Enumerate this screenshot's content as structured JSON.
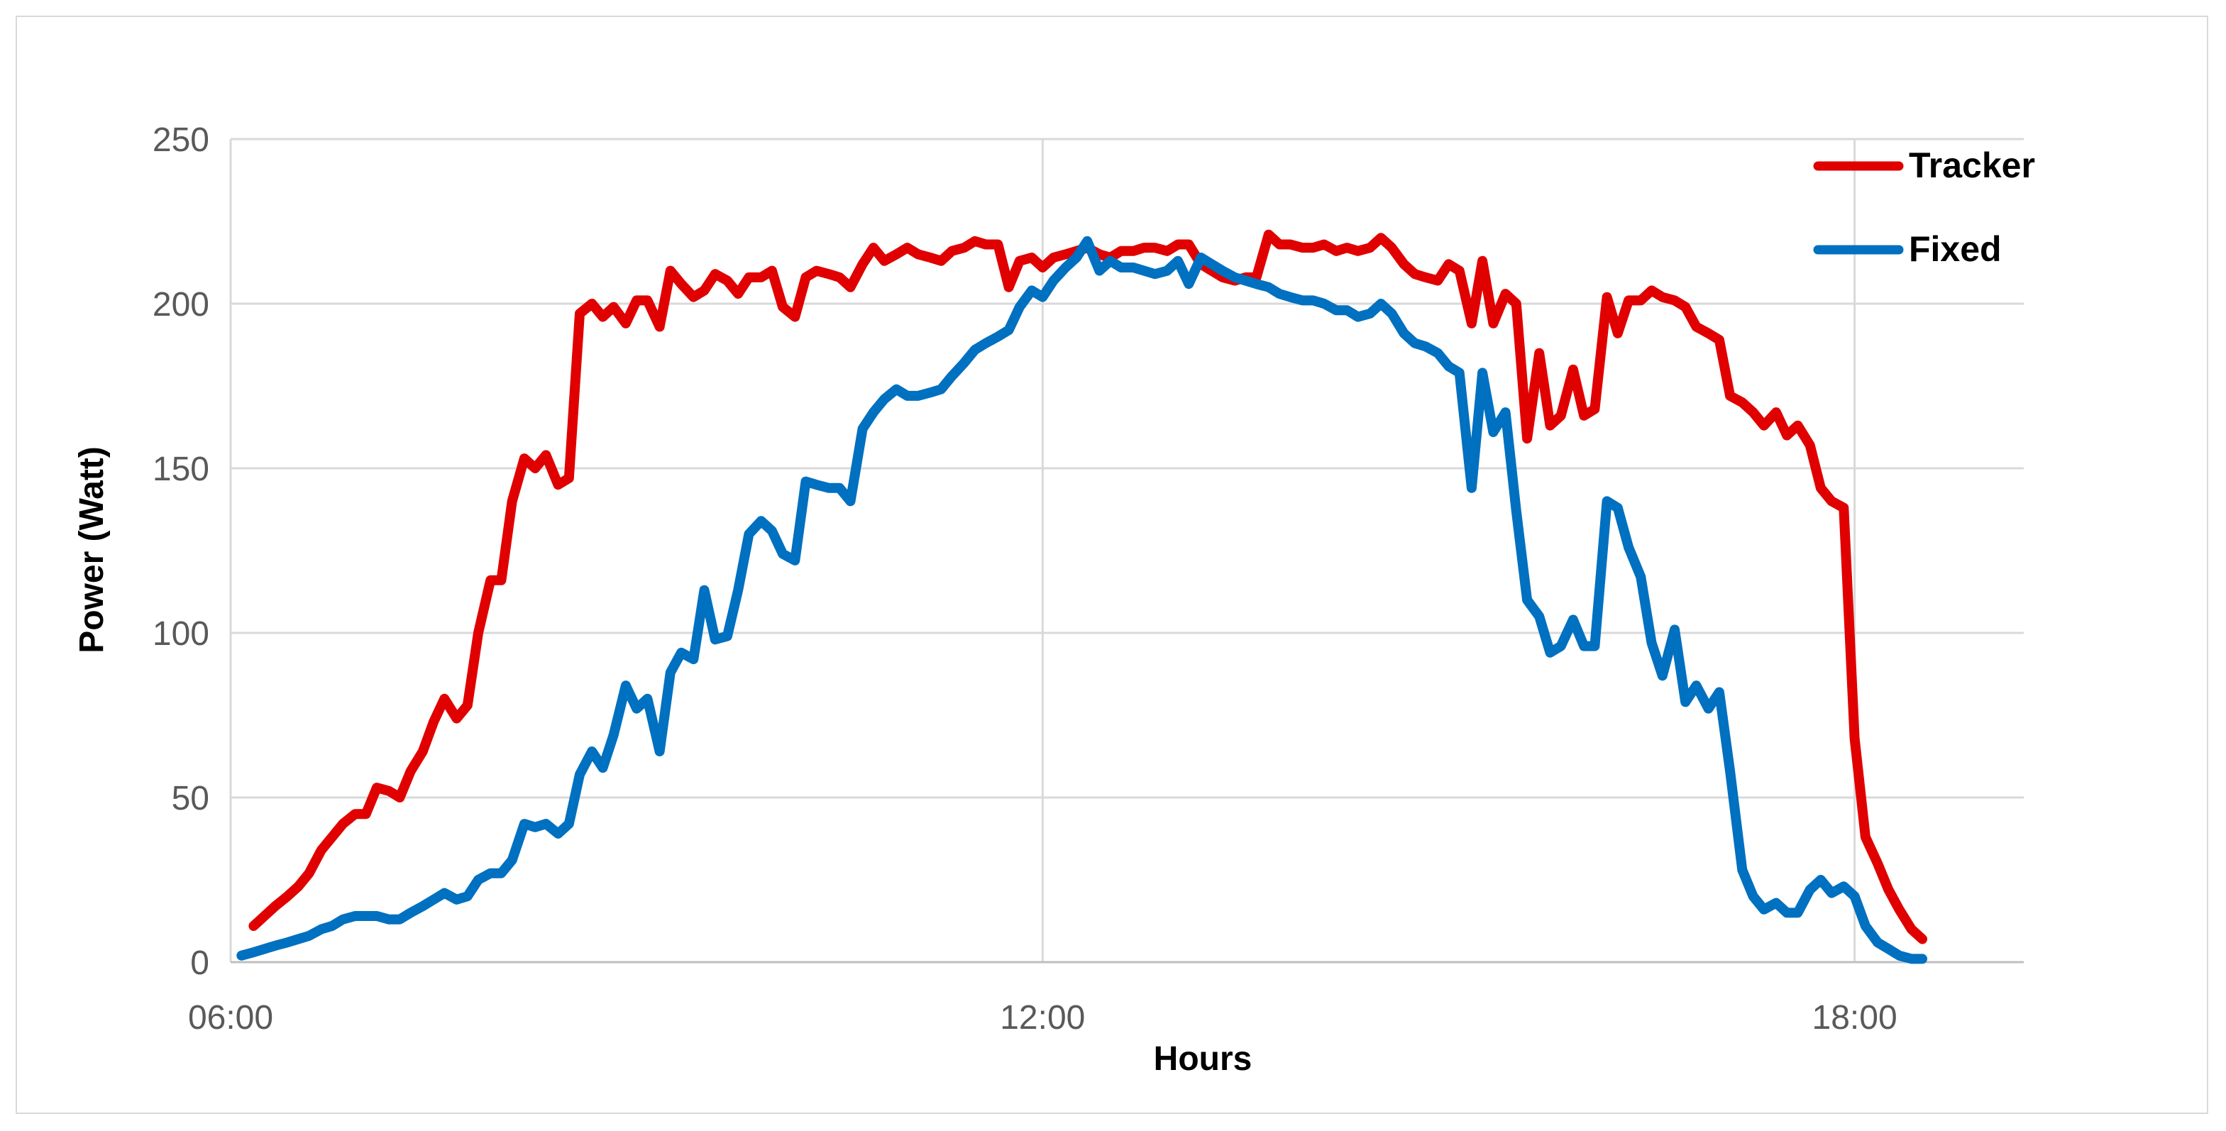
{
  "chart_data": {
    "type": "line",
    "xlabel": "Hours",
    "ylabel": "Power (Watt)",
    "x_unit": "hours",
    "xlim": [
      6,
      19.25
    ],
    "ylim": [
      0,
      250
    ],
    "x_ticks": [
      6,
      12,
      18
    ],
    "x_tick_labels": [
      "06:00",
      "12:00",
      "18:00"
    ],
    "y_ticks": [
      0,
      50,
      100,
      150,
      200,
      250
    ],
    "grid": true,
    "legend_position": "top-right",
    "series": [
      {
        "name": "Tracker",
        "color": "#e00000",
        "points": [
          [
            6.17,
            11
          ],
          [
            6.25,
            14
          ],
          [
            6.33,
            17
          ],
          [
            6.42,
            20
          ],
          [
            6.5,
            23
          ],
          [
            6.58,
            27
          ],
          [
            6.67,
            34
          ],
          [
            6.75,
            38
          ],
          [
            6.83,
            42
          ],
          [
            6.92,
            45
          ],
          [
            7.0,
            45
          ],
          [
            7.08,
            53
          ],
          [
            7.17,
            52
          ],
          [
            7.25,
            50
          ],
          [
            7.33,
            58
          ],
          [
            7.42,
            64
          ],
          [
            7.5,
            73
          ],
          [
            7.58,
            80
          ],
          [
            7.67,
            74
          ],
          [
            7.75,
            78
          ],
          [
            7.83,
            100
          ],
          [
            7.92,
            116
          ],
          [
            8.0,
            116
          ],
          [
            8.08,
            140
          ],
          [
            8.17,
            153
          ],
          [
            8.25,
            150
          ],
          [
            8.33,
            154
          ],
          [
            8.42,
            145
          ],
          [
            8.5,
            147
          ],
          [
            8.58,
            197
          ],
          [
            8.67,
            200
          ],
          [
            8.75,
            196
          ],
          [
            8.83,
            199
          ],
          [
            8.92,
            194
          ],
          [
            9.0,
            201
          ],
          [
            9.08,
            201
          ],
          [
            9.17,
            193
          ],
          [
            9.25,
            210
          ],
          [
            9.33,
            206
          ],
          [
            9.42,
            202
          ],
          [
            9.5,
            204
          ],
          [
            9.58,
            209
          ],
          [
            9.67,
            207
          ],
          [
            9.75,
            203
          ],
          [
            9.83,
            208
          ],
          [
            9.92,
            208
          ],
          [
            10.0,
            210
          ],
          [
            10.08,
            199
          ],
          [
            10.17,
            196
          ],
          [
            10.25,
            208
          ],
          [
            10.33,
            210
          ],
          [
            10.42,
            209
          ],
          [
            10.5,
            208
          ],
          [
            10.58,
            205
          ],
          [
            10.67,
            212
          ],
          [
            10.75,
            217
          ],
          [
            10.83,
            213
          ],
          [
            10.92,
            215
          ],
          [
            11.0,
            217
          ],
          [
            11.08,
            215
          ],
          [
            11.17,
            214
          ],
          [
            11.25,
            213
          ],
          [
            11.33,
            216
          ],
          [
            11.42,
            217
          ],
          [
            11.5,
            219
          ],
          [
            11.58,
            218
          ],
          [
            11.67,
            218
          ],
          [
            11.75,
            205
          ],
          [
            11.83,
            213
          ],
          [
            11.92,
            214
          ],
          [
            12.0,
            211
          ],
          [
            12.08,
            214
          ],
          [
            12.17,
            215
          ],
          [
            12.25,
            216
          ],
          [
            12.33,
            217
          ],
          [
            12.42,
            215
          ],
          [
            12.5,
            214
          ],
          [
            12.58,
            216
          ],
          [
            12.67,
            216
          ],
          [
            12.75,
            217
          ],
          [
            12.83,
            217
          ],
          [
            12.92,
            216
          ],
          [
            13.0,
            218
          ],
          [
            13.08,
            218
          ],
          [
            13.17,
            212
          ],
          [
            13.25,
            210
          ],
          [
            13.33,
            208
          ],
          [
            13.42,
            207
          ],
          [
            13.5,
            208
          ],
          [
            13.58,
            208
          ],
          [
            13.67,
            221
          ],
          [
            13.75,
            218
          ],
          [
            13.83,
            218
          ],
          [
            13.92,
            217
          ],
          [
            14.0,
            217
          ],
          [
            14.08,
            218
          ],
          [
            14.17,
            216
          ],
          [
            14.25,
            217
          ],
          [
            14.33,
            216
          ],
          [
            14.42,
            217
          ],
          [
            14.5,
            220
          ],
          [
            14.58,
            217
          ],
          [
            14.67,
            212
          ],
          [
            14.75,
            209
          ],
          [
            14.83,
            208
          ],
          [
            14.92,
            207
          ],
          [
            15.0,
            212
          ],
          [
            15.08,
            210
          ],
          [
            15.17,
            194
          ],
          [
            15.25,
            213
          ],
          [
            15.33,
            194
          ],
          [
            15.42,
            203
          ],
          [
            15.5,
            200
          ],
          [
            15.58,
            159
          ],
          [
            15.67,
            185
          ],
          [
            15.75,
            163
          ],
          [
            15.83,
            166
          ],
          [
            15.92,
            180
          ],
          [
            16.0,
            166
          ],
          [
            16.08,
            168
          ],
          [
            16.17,
            202
          ],
          [
            16.25,
            191
          ],
          [
            16.33,
            201
          ],
          [
            16.42,
            201
          ],
          [
            16.5,
            204
          ],
          [
            16.58,
            202
          ],
          [
            16.67,
            201
          ],
          [
            16.75,
            199
          ],
          [
            16.83,
            193
          ],
          [
            16.92,
            191
          ],
          [
            17.0,
            189
          ],
          [
            17.08,
            172
          ],
          [
            17.17,
            170
          ],
          [
            17.25,
            167
          ],
          [
            17.33,
            163
          ],
          [
            17.42,
            167
          ],
          [
            17.5,
            160
          ],
          [
            17.58,
            163
          ],
          [
            17.67,
            157
          ],
          [
            17.75,
            144
          ],
          [
            17.83,
            140
          ],
          [
            17.92,
            138
          ],
          [
            18.0,
            68
          ],
          [
            18.08,
            38
          ],
          [
            18.17,
            30
          ],
          [
            18.25,
            22
          ],
          [
            18.33,
            16
          ],
          [
            18.42,
            10
          ],
          [
            18.5,
            7
          ]
        ]
      },
      {
        "name": "Fixed",
        "color": "#0070c0",
        "points": [
          [
            6.08,
            2
          ],
          [
            6.17,
            3
          ],
          [
            6.25,
            4
          ],
          [
            6.33,
            5
          ],
          [
            6.42,
            6
          ],
          [
            6.5,
            7
          ],
          [
            6.58,
            8
          ],
          [
            6.67,
            10
          ],
          [
            6.75,
            11
          ],
          [
            6.83,
            13
          ],
          [
            6.92,
            14
          ],
          [
            7.0,
            14
          ],
          [
            7.08,
            14
          ],
          [
            7.17,
            13
          ],
          [
            7.25,
            13
          ],
          [
            7.33,
            15
          ],
          [
            7.42,
            17
          ],
          [
            7.5,
            19
          ],
          [
            7.58,
            21
          ],
          [
            7.67,
            19
          ],
          [
            7.75,
            20
          ],
          [
            7.83,
            25
          ],
          [
            7.92,
            27
          ],
          [
            8.0,
            27
          ],
          [
            8.08,
            31
          ],
          [
            8.17,
            42
          ],
          [
            8.25,
            41
          ],
          [
            8.33,
            42
          ],
          [
            8.42,
            39
          ],
          [
            8.5,
            42
          ],
          [
            8.58,
            57
          ],
          [
            8.67,
            64
          ],
          [
            8.75,
            59
          ],
          [
            8.83,
            69
          ],
          [
            8.92,
            84
          ],
          [
            9.0,
            77
          ],
          [
            9.08,
            80
          ],
          [
            9.17,
            64
          ],
          [
            9.25,
            88
          ],
          [
            9.33,
            94
          ],
          [
            9.42,
            92
          ],
          [
            9.5,
            113
          ],
          [
            9.58,
            98
          ],
          [
            9.67,
            99
          ],
          [
            9.75,
            113
          ],
          [
            9.83,
            130
          ],
          [
            9.92,
            134
          ],
          [
            10.0,
            131
          ],
          [
            10.08,
            124
          ],
          [
            10.17,
            122
          ],
          [
            10.25,
            146
          ],
          [
            10.33,
            145
          ],
          [
            10.42,
            144
          ],
          [
            10.5,
            144
          ],
          [
            10.58,
            140
          ],
          [
            10.67,
            162
          ],
          [
            10.75,
            167
          ],
          [
            10.83,
            171
          ],
          [
            10.92,
            174
          ],
          [
            11.0,
            172
          ],
          [
            11.08,
            172
          ],
          [
            11.17,
            173
          ],
          [
            11.25,
            174
          ],
          [
            11.33,
            178
          ],
          [
            11.42,
            182
          ],
          [
            11.5,
            186
          ],
          [
            11.58,
            188
          ],
          [
            11.67,
            190
          ],
          [
            11.75,
            192
          ],
          [
            11.83,
            199
          ],
          [
            11.92,
            204
          ],
          [
            12.0,
            202
          ],
          [
            12.08,
            207
          ],
          [
            12.17,
            211
          ],
          [
            12.25,
            214
          ],
          [
            12.33,
            219
          ],
          [
            12.42,
            210
          ],
          [
            12.5,
            213
          ],
          [
            12.58,
            211
          ],
          [
            12.67,
            211
          ],
          [
            12.75,
            210
          ],
          [
            12.83,
            209
          ],
          [
            12.92,
            210
          ],
          [
            13.0,
            213
          ],
          [
            13.08,
            206
          ],
          [
            13.17,
            214
          ],
          [
            13.25,
            212
          ],
          [
            13.33,
            210
          ],
          [
            13.42,
            208
          ],
          [
            13.5,
            207
          ],
          [
            13.58,
            206
          ],
          [
            13.67,
            205
          ],
          [
            13.75,
            203
          ],
          [
            13.83,
            202
          ],
          [
            13.92,
            201
          ],
          [
            14.0,
            201
          ],
          [
            14.08,
            200
          ],
          [
            14.17,
            198
          ],
          [
            14.25,
            198
          ],
          [
            14.33,
            196
          ],
          [
            14.42,
            197
          ],
          [
            14.5,
            200
          ],
          [
            14.58,
            197
          ],
          [
            14.67,
            191
          ],
          [
            14.75,
            188
          ],
          [
            14.83,
            187
          ],
          [
            14.92,
            185
          ],
          [
            15.0,
            181
          ],
          [
            15.08,
            179
          ],
          [
            15.17,
            144
          ],
          [
            15.25,
            179
          ],
          [
            15.33,
            161
          ],
          [
            15.42,
            167
          ],
          [
            15.5,
            137
          ],
          [
            15.58,
            110
          ],
          [
            15.67,
            105
          ],
          [
            15.75,
            94
          ],
          [
            15.83,
            96
          ],
          [
            15.92,
            104
          ],
          [
            16.0,
            96
          ],
          [
            16.08,
            96
          ],
          [
            16.17,
            140
          ],
          [
            16.25,
            138
          ],
          [
            16.33,
            126
          ],
          [
            16.42,
            117
          ],
          [
            16.5,
            97
          ],
          [
            16.58,
            87
          ],
          [
            16.67,
            101
          ],
          [
            16.75,
            79
          ],
          [
            16.83,
            84
          ],
          [
            16.92,
            77
          ],
          [
            17.0,
            82
          ],
          [
            17.08,
            58
          ],
          [
            17.17,
            28
          ],
          [
            17.25,
            20
          ],
          [
            17.33,
            16
          ],
          [
            17.42,
            18
          ],
          [
            17.5,
            15
          ],
          [
            17.58,
            15
          ],
          [
            17.67,
            22
          ],
          [
            17.75,
            25
          ],
          [
            17.83,
            21
          ],
          [
            17.92,
            23
          ],
          [
            18.0,
            20
          ],
          [
            18.08,
            11
          ],
          [
            18.17,
            6
          ],
          [
            18.25,
            4
          ],
          [
            18.33,
            2
          ],
          [
            18.42,
            1
          ],
          [
            18.5,
            1
          ]
        ]
      }
    ]
  }
}
